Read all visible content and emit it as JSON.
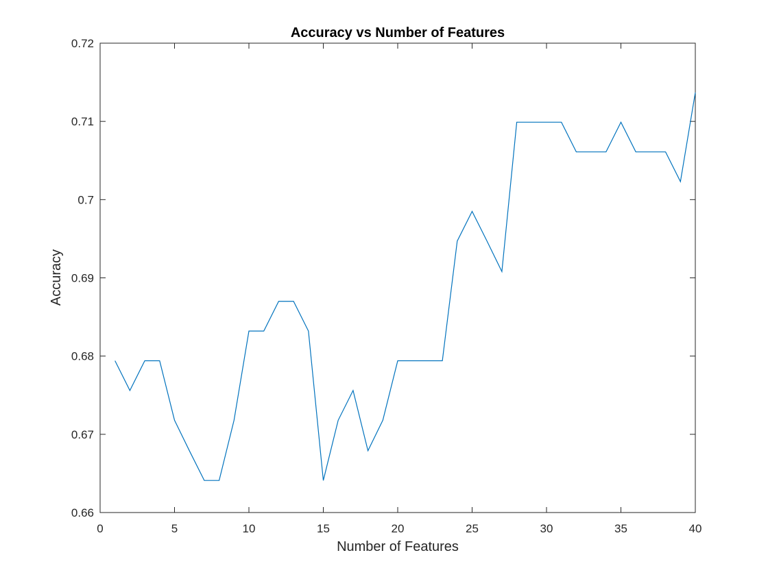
{
  "chart_data": {
    "type": "line",
    "title": "Accuracy vs Number of Features",
    "xlabel": "Number of Features",
    "ylabel": "Accuracy",
    "xlim": [
      0,
      40
    ],
    "ylim": [
      0.66,
      0.72
    ],
    "xticks": [
      0,
      5,
      10,
      15,
      20,
      25,
      30,
      35,
      40
    ],
    "xtick_labels": [
      "0",
      "5",
      "10",
      "15",
      "20",
      "25",
      "30",
      "35",
      "40"
    ],
    "yticks": [
      0.66,
      0.67,
      0.68,
      0.69,
      0.7,
      0.71,
      0.72
    ],
    "ytick_labels": [
      "0.66",
      "0.67",
      "0.68",
      "0.69",
      "0.7",
      "0.71",
      "0.72"
    ],
    "grid": false,
    "box": true,
    "series": [
      {
        "color": "#0072bd",
        "x": [
          1,
          2,
          3,
          4,
          5,
          6,
          7,
          8,
          9,
          10,
          11,
          12,
          13,
          14,
          15,
          16,
          17,
          18,
          19,
          20,
          21,
          22,
          23,
          24,
          25,
          26,
          27,
          28,
          29,
          30,
          31,
          32,
          33,
          34,
          35,
          36,
          37,
          38,
          39,
          40
        ],
        "y": [
          0.6794,
          0.6756,
          0.6794,
          0.6794,
          0.6718,
          0.6679,
          0.6641,
          0.6641,
          0.6718,
          0.6832,
          0.6832,
          0.687,
          0.687,
          0.6832,
          0.6641,
          0.6718,
          0.6756,
          0.6679,
          0.6718,
          0.6794,
          0.6794,
          0.6794,
          0.6794,
          0.6947,
          0.6985,
          0.6947,
          0.6908,
          0.7099,
          0.7099,
          0.7099,
          0.7099,
          0.7061,
          0.7061,
          0.7061,
          0.7099,
          0.7061,
          0.7061,
          0.7061,
          0.7023,
          0.7137
        ]
      }
    ]
  }
}
